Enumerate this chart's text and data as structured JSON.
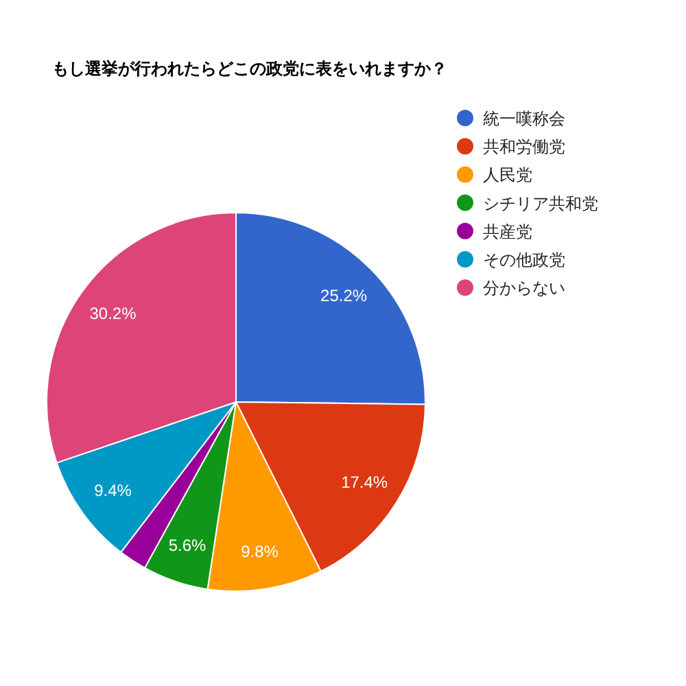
{
  "chart_data": {
    "type": "pie",
    "title": "もし選挙が行われたらどこの政党に表をいれますか？",
    "categories": [
      "統一嘆称会",
      "共和労働党",
      "人民党",
      "シチリア共和党",
      "共産党",
      "その他政党",
      "分からない"
    ],
    "values": [
      25.2,
      17.4,
      9.8,
      5.6,
      2.4,
      9.4,
      30.2
    ],
    "colors": [
      "#3366cc",
      "#dc3912",
      "#ff9900",
      "#109618",
      "#990099",
      "#0099c6",
      "#dd4477"
    ],
    "value_labels": [
      "25.2%",
      "17.4%",
      "9.8%",
      "5.6%",
      null,
      "9.4%",
      "30.2%"
    ],
    "legend": "right"
  }
}
